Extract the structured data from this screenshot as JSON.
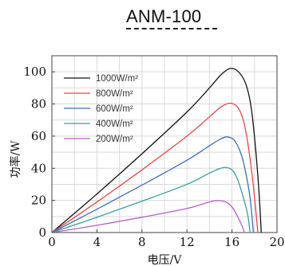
{
  "header": {
    "title": "ANM-100"
  },
  "chart_data": {
    "type": "line",
    "title": "ANM-100",
    "xlabel": "电压/V",
    "ylabel": "功率/W",
    "xlim": [
      0,
      20
    ],
    "ylim": [
      0,
      110
    ],
    "xticks": [
      0,
      4,
      8,
      12,
      16,
      20
    ],
    "yticks": [
      0,
      20,
      40,
      60,
      80,
      100
    ],
    "grid": true,
    "legend_position": "top-left",
    "series": [
      {
        "name": "1000W/m²",
        "color": "#111111",
        "points": [
          [
            0,
            0
          ],
          [
            4,
            24
          ],
          [
            8,
            49
          ],
          [
            12,
            75
          ],
          [
            14,
            90
          ],
          [
            15,
            98
          ],
          [
            15.8,
            102
          ],
          [
            16.5,
            100.5
          ],
          [
            17.2,
            93
          ],
          [
            17.7,
            78
          ],
          [
            18.1,
            52
          ],
          [
            18.4,
            25
          ],
          [
            18.6,
            0
          ]
        ]
      },
      {
        "name": "800W/m²",
        "color": "#e8474a",
        "points": [
          [
            0,
            0
          ],
          [
            4,
            19
          ],
          [
            8,
            39
          ],
          [
            12,
            60
          ],
          [
            14,
            72
          ],
          [
            15,
            78
          ],
          [
            15.8,
            80.5
          ],
          [
            16.5,
            78
          ],
          [
            17.0,
            70
          ],
          [
            17.4,
            56
          ],
          [
            17.8,
            35
          ],
          [
            18.1,
            15
          ],
          [
            18.3,
            0
          ]
        ]
      },
      {
        "name": "600W/m²",
        "color": "#3d6fb6",
        "points": [
          [
            0,
            0
          ],
          [
            4,
            14.5
          ],
          [
            8,
            29.5
          ],
          [
            12,
            45
          ],
          [
            14,
            54
          ],
          [
            14.8,
            57.5
          ],
          [
            15.5,
            59.5
          ],
          [
            16.2,
            57.5
          ],
          [
            16.8,
            49
          ],
          [
            17.2,
            38
          ],
          [
            17.6,
            22
          ],
          [
            17.9,
            0
          ]
        ]
      },
      {
        "name": "400W/m²",
        "color": "#3a9c9c",
        "points": [
          [
            0,
            0
          ],
          [
            4,
            9.5
          ],
          [
            8,
            19.5
          ],
          [
            12,
            30
          ],
          [
            14,
            37
          ],
          [
            14.8,
            39.5
          ],
          [
            15.4,
            40.5
          ],
          [
            16.0,
            39
          ],
          [
            16.5,
            33
          ],
          [
            17.0,
            22
          ],
          [
            17.4,
            11
          ],
          [
            17.6,
            0
          ]
        ]
      },
      {
        "name": "200W/m²",
        "color": "#b45fc6",
        "points": [
          [
            0,
            0
          ],
          [
            4,
            4.5
          ],
          [
            8,
            9.5
          ],
          [
            12,
            15
          ],
          [
            13.5,
            18
          ],
          [
            14.4,
            19.7
          ],
          [
            15.0,
            19.8
          ],
          [
            15.6,
            18.5
          ],
          [
            16.1,
            15
          ],
          [
            16.5,
            10
          ],
          [
            16.9,
            4
          ],
          [
            17.1,
            0
          ]
        ]
      }
    ]
  }
}
